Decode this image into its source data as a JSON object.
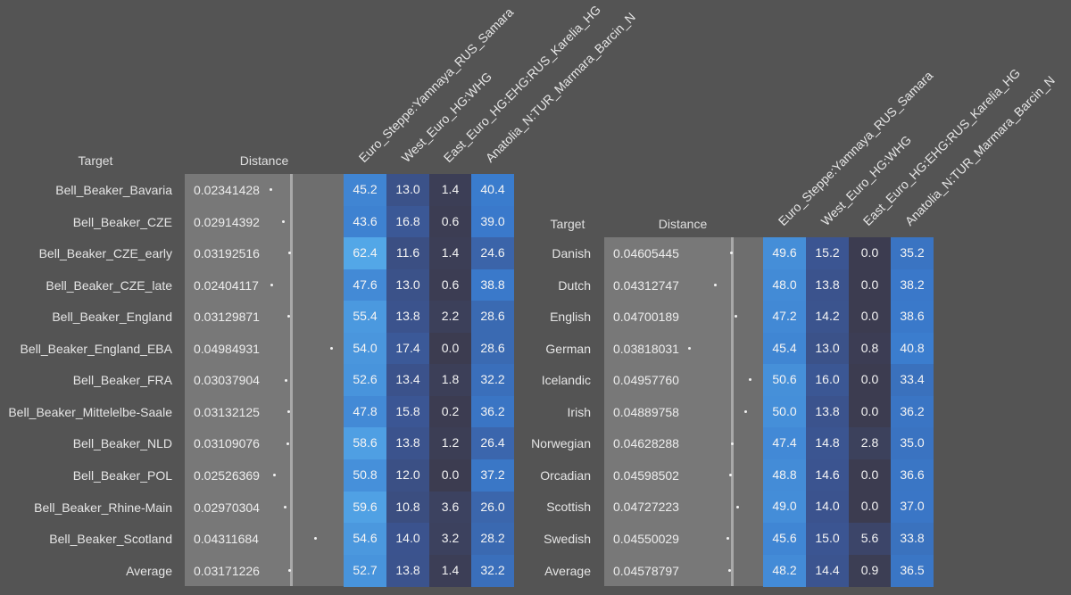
{
  "chart_data": [
    {
      "type": "table",
      "headers": {
        "target": "Target",
        "distance": "Distance"
      },
      "columns": [
        "Euro_Steppe:Yamnaya_RUS_Samara",
        "West_Euro_HG:WHG",
        "East_Euro_HG:EHG:RUS_Karelia_HG",
        "Anatolia_N:TUR_Marmara_Barcin_N"
      ],
      "rows": [
        {
          "target": "Bell_Beaker_Bavaria",
          "distance": "0.02341428",
          "values": [
            45.2,
            13.0,
            1.4,
            40.4
          ]
        },
        {
          "target": "Bell_Beaker_CZE",
          "distance": "0.02914392",
          "values": [
            43.6,
            16.8,
            0.6,
            39.0
          ]
        },
        {
          "target": "Bell_Beaker_CZE_early",
          "distance": "0.03192516",
          "values": [
            62.4,
            11.6,
            1.4,
            24.6
          ]
        },
        {
          "target": "Bell_Beaker_CZE_late",
          "distance": "0.02404117",
          "values": [
            47.6,
            13.0,
            0.6,
            38.8
          ]
        },
        {
          "target": "Bell_Beaker_England",
          "distance": "0.03129871",
          "values": [
            55.4,
            13.8,
            2.2,
            28.6
          ]
        },
        {
          "target": "Bell_Beaker_England_EBA",
          "distance": "0.04984931",
          "values": [
            54.0,
            17.4,
            0.0,
            28.6
          ]
        },
        {
          "target": "Bell_Beaker_FRA",
          "distance": "0.03037904",
          "values": [
            52.6,
            13.4,
            1.8,
            32.2
          ]
        },
        {
          "target": "Bell_Beaker_Mittelelbe-Saale",
          "distance": "0.03132125",
          "values": [
            47.8,
            15.8,
            0.2,
            36.2
          ]
        },
        {
          "target": "Bell_Beaker_NLD",
          "distance": "0.03109076",
          "values": [
            58.6,
            13.8,
            1.2,
            26.4
          ]
        },
        {
          "target": "Bell_Beaker_POL",
          "distance": "0.02526369",
          "values": [
            50.8,
            12.0,
            0.0,
            37.2
          ]
        },
        {
          "target": "Bell_Beaker_Rhine-Main",
          "distance": "0.02970304",
          "values": [
            59.6,
            10.8,
            3.6,
            26.0
          ]
        },
        {
          "target": "Bell_Beaker_Scotland",
          "distance": "0.04311684",
          "values": [
            54.6,
            14.0,
            3.2,
            28.2
          ]
        },
        {
          "target": "Average",
          "distance": "0.03171226",
          "values": [
            52.7,
            13.8,
            1.4,
            32.2
          ]
        }
      ]
    },
    {
      "type": "table",
      "headers": {
        "target": "Target",
        "distance": "Distance"
      },
      "columns": [
        "Euro_Steppe:Yamnaya_RUS_Samara",
        "West_Euro_HG:WHG",
        "East_Euro_HG:EHG:RUS_Karelia_HG",
        "Anatolia_N:TUR_Marmara_Barcin_N"
      ],
      "rows": [
        {
          "target": "Danish",
          "distance": "0.04605445",
          "values": [
            49.6,
            15.2,
            0.0,
            35.2
          ]
        },
        {
          "target": "Dutch",
          "distance": "0.04312747",
          "values": [
            48.0,
            13.8,
            0.0,
            38.2
          ]
        },
        {
          "target": "English",
          "distance": "0.04700189",
          "values": [
            47.2,
            14.2,
            0.0,
            38.6
          ]
        },
        {
          "target": "German",
          "distance": "0.03818031",
          "values": [
            45.4,
            13.0,
            0.8,
            40.8
          ]
        },
        {
          "target": "Icelandic",
          "distance": "0.04957760",
          "values": [
            50.6,
            16.0,
            0.0,
            33.4
          ]
        },
        {
          "target": "Irish",
          "distance": "0.04889758",
          "values": [
            50.0,
            13.8,
            0.0,
            36.2
          ]
        },
        {
          "target": "Norwegian",
          "distance": "0.04628288",
          "values": [
            47.4,
            14.8,
            2.8,
            35.0
          ]
        },
        {
          "target": "Orcadian",
          "distance": "0.04598502",
          "values": [
            48.8,
            14.6,
            0.0,
            36.6
          ]
        },
        {
          "target": "Scottish",
          "distance": "0.04727223",
          "values": [
            49.0,
            14.0,
            0.0,
            37.0
          ]
        },
        {
          "target": "Swedish",
          "distance": "0.04550029",
          "values": [
            45.6,
            15.0,
            5.6,
            33.8
          ]
        },
        {
          "target": "Average",
          "distance": "0.04578797",
          "values": [
            48.2,
            14.4,
            0.9,
            36.5
          ]
        }
      ]
    }
  ],
  "colors": {
    "background": "#545454",
    "heat_low": "#3c3c50",
    "heat_high": "#52a6e6"
  }
}
